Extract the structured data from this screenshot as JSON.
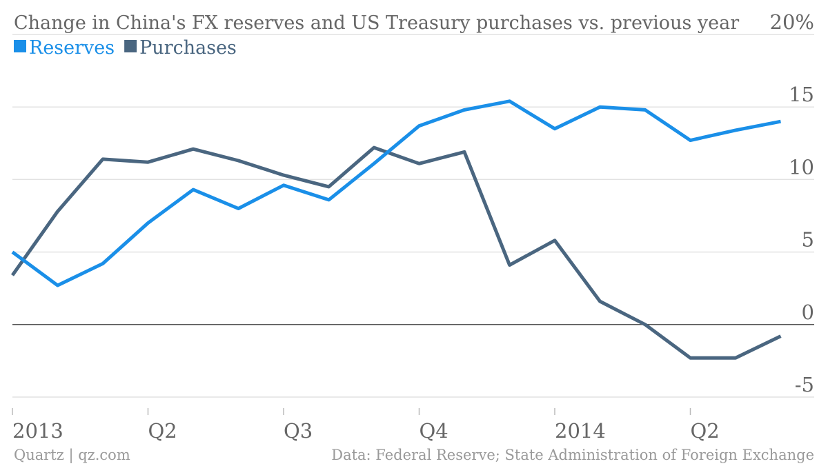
{
  "chart_data": {
    "type": "line",
    "title": "Change in China's FX reserves and US Treasury purchases vs. previous year",
    "legend_placement": "top-left",
    "ylim": [
      -5,
      20
    ],
    "y_unit": "%",
    "y_ticks": [
      {
        "value": 20,
        "label": "20%"
      },
      {
        "value": 15,
        "label": "15"
      },
      {
        "value": 10,
        "label": "10"
      },
      {
        "value": 5,
        "label": "5"
      },
      {
        "value": 0,
        "label": "0"
      },
      {
        "value": -5,
        "label": "-5"
      }
    ],
    "x": [
      "Jan 2013",
      "Feb 2013",
      "Mar 2013",
      "Apr 2013",
      "May 2013",
      "Jun 2013",
      "Jul 2013",
      "Aug 2013",
      "Sep 2013",
      "Oct 2013",
      "Nov 2013",
      "Dec 2013",
      "Jan 2014",
      "Feb 2014",
      "Mar 2014",
      "Apr 2014",
      "May 2014",
      "Jun 2014"
    ],
    "x_ticks": [
      {
        "x": "Jan 2013",
        "label": "2013"
      },
      {
        "x": "Apr 2013",
        "label": "Q2"
      },
      {
        "x": "Jul 2013",
        "label": "Q3"
      },
      {
        "x": "Oct 2013",
        "label": "Q4"
      },
      {
        "x": "Jan 2014",
        "label": "2014"
      },
      {
        "x": "Apr 2014",
        "label": "Q2"
      }
    ],
    "series": [
      {
        "name": "Reserves",
        "color": "#1a8fe8",
        "values": [
          5.0,
          2.7,
          4.2,
          7.0,
          9.3,
          8.0,
          9.6,
          8.6,
          11.1,
          13.7,
          14.8,
          15.4,
          13.5,
          15.0,
          14.8,
          12.7,
          13.4,
          14.0
        ]
      },
      {
        "name": "Purchases",
        "color": "#4a6680",
        "values": [
          3.4,
          7.8,
          11.4,
          11.2,
          12.1,
          11.3,
          10.3,
          9.5,
          12.2,
          11.1,
          11.9,
          4.1,
          5.8,
          1.6,
          0.0,
          -2.3,
          -2.3,
          -0.8
        ]
      }
    ],
    "grid": true
  },
  "footer": {
    "left": "Quartz | qz.com",
    "right": "Data: Federal Reserve; State Administration of Foreign Exchange"
  }
}
